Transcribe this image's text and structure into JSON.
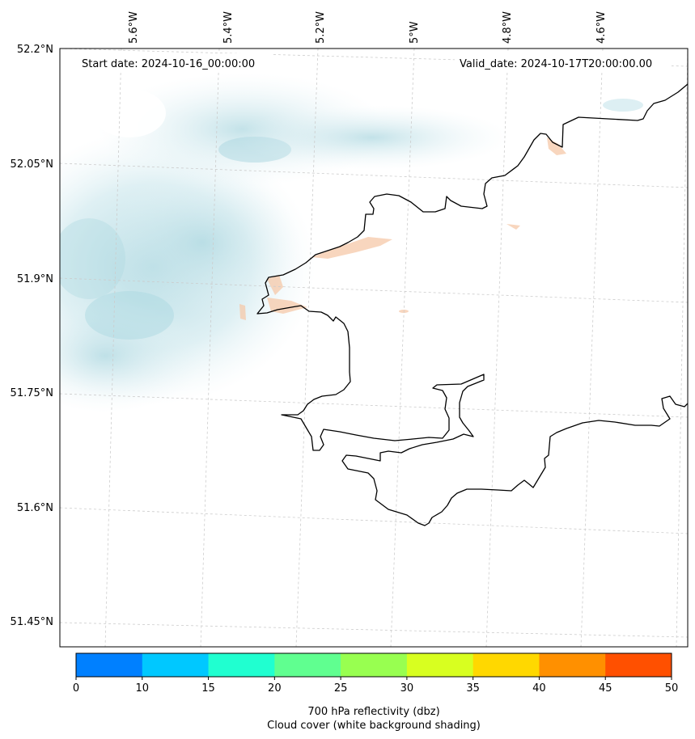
{
  "header": {
    "start_label": "Start date: 2024-10-16_00:00:00",
    "valid_label": "Valid_date: 2024-10-17T20:00:00.00"
  },
  "map": {
    "lon_labels": [
      "5.6°W",
      "5.4°W",
      "5.2°W",
      "5°W",
      "4.8°W",
      "4.6°W"
    ],
    "lat_labels": [
      "52.2°N",
      "52.05°N",
      "51.9°N",
      "51.75°N",
      "51.6°N",
      "51.45°N"
    ],
    "coastline_color": "#000000",
    "gridline_color": "#cccccc",
    "cloud_shading_color": "#bfe3ea",
    "reflectivity_patch_color": "#f6c8a8"
  },
  "colorbar": {
    "ticks": [
      "0",
      "10",
      "15",
      "20",
      "25",
      "30",
      "35",
      "40",
      "45",
      "50"
    ],
    "colors": [
      "#0080ff",
      "#00c8ff",
      "#20ffd0",
      "#60ff90",
      "#98ff50",
      "#d8ff20",
      "#ffd800",
      "#ff9000",
      "#ff5000"
    ],
    "title_line1": "700 hPa reflectivity (dbz)",
    "title_line2": "Cloud cover (white background shading)"
  }
}
